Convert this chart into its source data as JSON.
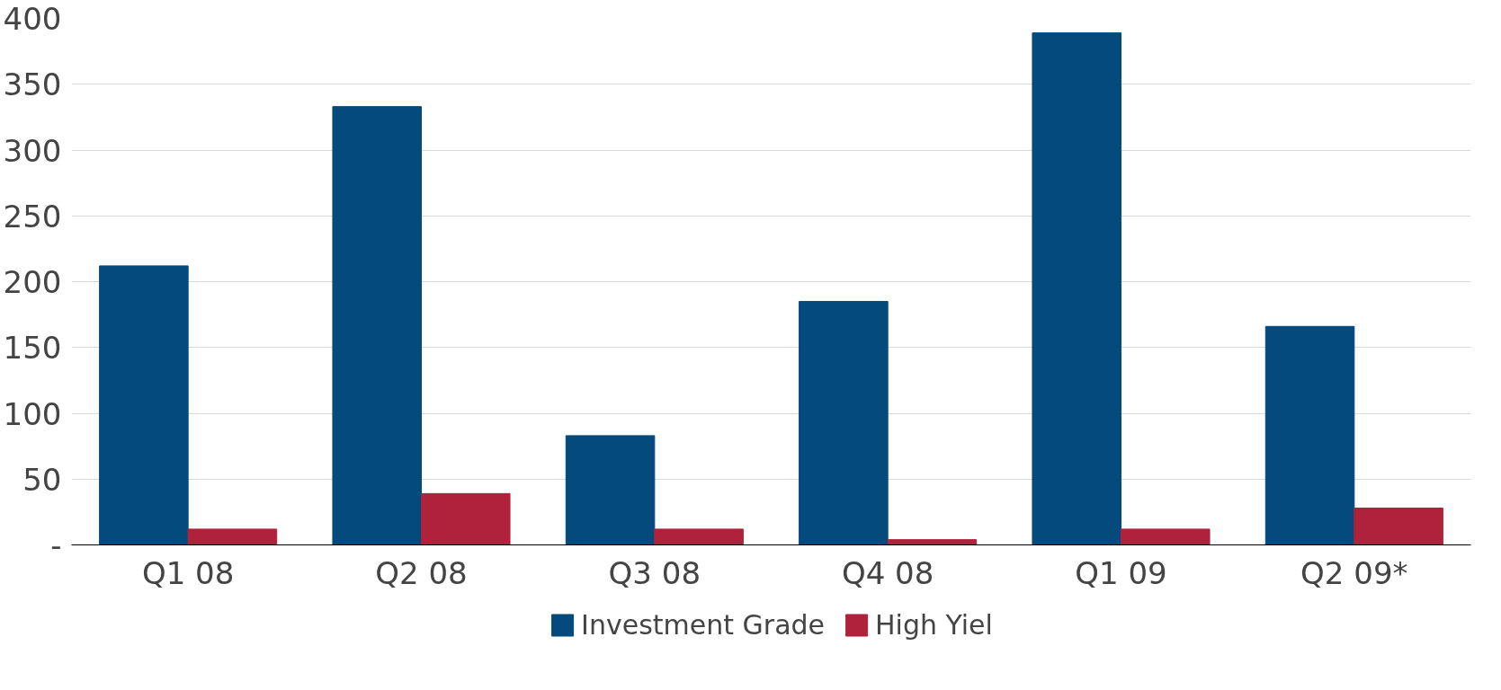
{
  "chart_data": {
    "type": "bar",
    "categories": [
      "Q1 08",
      "Q2 08",
      "Q3 08",
      "Q4 08",
      "Q1 09",
      "Q2 09*"
    ],
    "series": [
      {
        "name": "Investment Grade",
        "color": "#044a7c",
        "values": [
          212,
          333,
          83,
          185,
          389,
          166
        ]
      },
      {
        "name": "High Yiel",
        "color": "#b0213c",
        "values": [
          12,
          39,
          12,
          4,
          12,
          28
        ]
      }
    ],
    "ylim": [
      0,
      400
    ],
    "yticks": [
      {
        "value": 0,
        "label": "-"
      },
      50,
      100,
      150,
      200,
      250,
      300,
      350,
      400
    ],
    "grid": "y",
    "legend": "bottom"
  }
}
